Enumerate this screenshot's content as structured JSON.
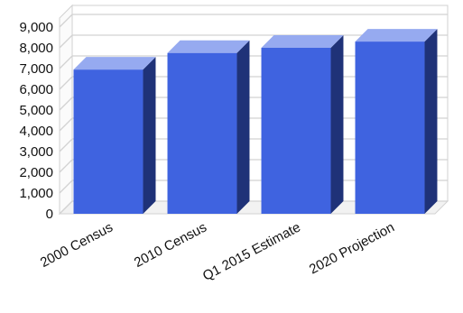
{
  "chart_data": {
    "type": "bar",
    "style": "3d-column",
    "categories": [
      "2000 Census",
      "2010 Census",
      "Q1 2015 Estimate",
      "2020 Projection"
    ],
    "series": [
      {
        "values": [
          6950,
          7750,
          8000,
          8300
        ]
      }
    ],
    "ylim": [
      0,
      9000
    ],
    "yticks": [
      "0",
      "1,000",
      "2,000",
      "3,000",
      "4,000",
      "5,000",
      "6,000",
      "7,000",
      "8,000",
      "9,000"
    ],
    "grid": true,
    "legend": "none",
    "colors": {
      "bar_front": "#3f63e0",
      "bar_top": "#96aaf0",
      "bar_side": "#1f3278",
      "grid": "#d2d2d2",
      "floor": "#f2f2f2",
      "wall": "#ffffff"
    }
  }
}
